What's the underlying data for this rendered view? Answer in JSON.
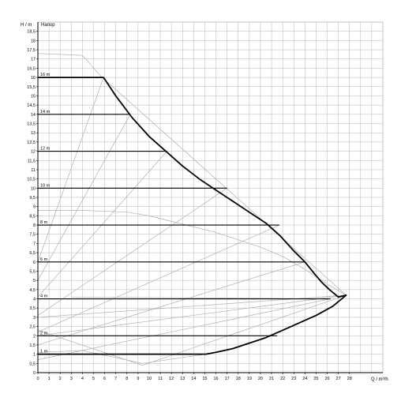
{
  "chart_data": {
    "type": "line",
    "title": "",
    "xlabel": "Q / m³/h",
    "ylabel": "H / m",
    "legend_label": "Напор",
    "xlim": [
      0,
      31
    ],
    "ylim": [
      0,
      19
    ],
    "x_ticks": [
      0,
      1,
      2,
      3,
      4,
      5,
      6,
      7,
      8,
      9,
      10,
      11,
      12,
      13,
      14,
      15,
      16,
      17,
      18,
      19,
      20,
      21,
      22,
      23,
      24,
      25,
      26,
      27,
      28
    ],
    "y_ticks": [
      0,
      0.5,
      1,
      1.5,
      2,
      2.5,
      3,
      3.5,
      4,
      4.5,
      5,
      5.5,
      6,
      6.5,
      7,
      7.5,
      8,
      8.5,
      9,
      9.5,
      10,
      10.5,
      11,
      11.5,
      12,
      12.5,
      13,
      13.5,
      14,
      14.5,
      15,
      15.5,
      16,
      16.5,
      17,
      17.5,
      18,
      18.5
    ],
    "grid": true,
    "colors": {
      "envelope": "#000000",
      "setpoint": "#000000",
      "guide": "#b0b0b0",
      "grid": "#b4b4b4",
      "axis": "#000000"
    },
    "envelope": {
      "x": [
        0,
        5.9,
        7,
        8.5,
        10,
        11.5,
        13,
        14.5,
        16,
        17.5,
        19,
        20.5,
        21.8,
        23,
        24,
        24.8,
        25.5,
        26.2,
        27,
        27.7,
        26.5,
        25,
        23.5,
        22,
        20.5,
        19,
        17.5,
        16,
        15.1,
        0
      ],
      "y": [
        16,
        16,
        15,
        13.8,
        12.8,
        12,
        11.2,
        10.5,
        9.9,
        9.3,
        8.7,
        8.1,
        7.4,
        6.6,
        6,
        5.4,
        4.9,
        4.5,
        4.1,
        4.2,
        3.6,
        3.1,
        2.7,
        2.3,
        1.9,
        1.6,
        1.3,
        1.1,
        1,
        1
      ]
    },
    "setpoint_levels": [
      {
        "label": "16 m",
        "value": 16,
        "x_end": 5.9
      },
      {
        "label": "14 m",
        "value": 14,
        "x_end": 8.3
      },
      {
        "label": "12 m",
        "value": 12,
        "x_end": 11.6
      },
      {
        "label": "10 m",
        "value": 10,
        "x_end": 17.0
      },
      {
        "label": "8 m",
        "value": 8,
        "x_end": 21.7
      },
      {
        "label": "6 m",
        "value": 6,
        "x_end": 24.0
      },
      {
        "label": "4 m",
        "value": 4,
        "x_end": 26.3
      },
      {
        "label": "2 m",
        "value": 2,
        "x_end": 21.5
      },
      {
        "label": "1 m",
        "value": 1,
        "x_end": 15.1
      }
    ],
    "guide_lines": [
      {
        "x": [
          0,
          4,
          5.6,
          27.7
        ],
        "y": [
          17.3,
          17.2,
          16.1,
          4.2
        ]
      },
      {
        "x": [
          0,
          5.9
        ],
        "y": [
          6,
          16
        ]
      },
      {
        "x": [
          0,
          8.3
        ],
        "y": [
          5,
          14
        ]
      },
      {
        "x": [
          0,
          11.6
        ],
        "y": [
          4.1,
          12
        ]
      },
      {
        "x": [
          0,
          17.0
        ],
        "y": [
          3.1,
          10
        ]
      },
      {
        "x": [
          0,
          21.7
        ],
        "y": [
          2.2,
          8
        ]
      },
      {
        "x": [
          0,
          24.0
        ],
        "y": [
          1.5,
          6
        ]
      },
      {
        "x": [
          0,
          26.3
        ],
        "y": [
          0.7,
          4
        ]
      },
      {
        "x": [
          0,
          4,
          8,
          10,
          12,
          14,
          16,
          18,
          20,
          22,
          24,
          26,
          27.7
        ],
        "y": [
          8.8,
          8.8,
          8.7,
          8.5,
          8.2,
          7.9,
          7.6,
          7.2,
          6.8,
          6.3,
          5.6,
          4.8,
          4.2
        ]
      },
      {
        "x": [
          0,
          9.4,
          27.7
        ],
        "y": [
          2.3,
          0.4,
          4.2
        ]
      },
      {
        "x": [
          0,
          4,
          9.4,
          15.1
        ],
        "y": [
          1.1,
          1.2,
          0.5,
          1.0
        ]
      },
      {
        "x": [
          3,
          26.3
        ],
        "y": [
          4.1,
          4.0
        ]
      },
      {
        "x": [
          0,
          27.7
        ],
        "y": [
          2,
          4.2
        ]
      },
      {
        "x": [
          0,
          27.7
        ],
        "y": [
          3,
          4.2
        ]
      }
    ]
  }
}
